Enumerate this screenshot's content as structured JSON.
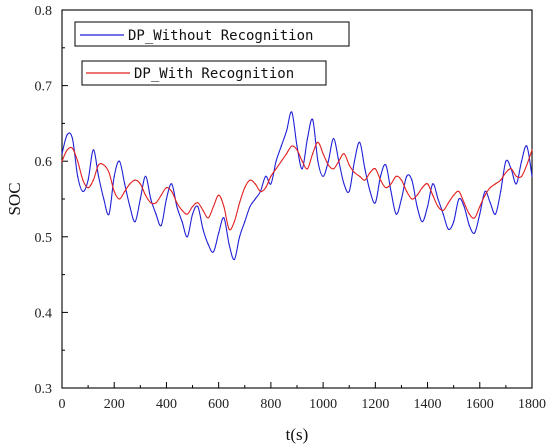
{
  "chart_data": {
    "type": "line",
    "xlabel": "t(s)",
    "ylabel": "SOC",
    "xlim": [
      0,
      1800
    ],
    "ylim": [
      0.3,
      0.8
    ],
    "xticks": [
      0,
      200,
      400,
      600,
      800,
      1000,
      1200,
      1400,
      1600,
      1800
    ],
    "yticks": [
      0.3,
      0.4,
      0.5,
      0.6,
      0.7,
      0.8
    ],
    "xtick_labels": [
      "0",
      "200",
      "400",
      "600",
      "800",
      "1000",
      "1200",
      "1400",
      "1600",
      "1800"
    ],
    "ytick_labels": [
      "0.3",
      "0.4",
      "0.5",
      "0.6",
      "0.7",
      "0.8"
    ],
    "legend_placement": "top-left",
    "series": [
      {
        "name": "DP_Without Recognition",
        "color": "#1f1fd6",
        "x": [
          0,
          20,
          40,
          60,
          80,
          100,
          120,
          140,
          160,
          180,
          200,
          220,
          240,
          260,
          280,
          300,
          320,
          340,
          360,
          380,
          400,
          420,
          440,
          460,
          480,
          500,
          520,
          540,
          560,
          580,
          600,
          620,
          640,
          660,
          680,
          700,
          720,
          740,
          760,
          780,
          800,
          820,
          840,
          860,
          880,
          900,
          920,
          940,
          960,
          980,
          1000,
          1020,
          1040,
          1060,
          1080,
          1100,
          1120,
          1140,
          1160,
          1180,
          1200,
          1220,
          1240,
          1260,
          1280,
          1300,
          1320,
          1340,
          1360,
          1380,
          1400,
          1420,
          1440,
          1460,
          1480,
          1500,
          1520,
          1540,
          1560,
          1580,
          1600,
          1620,
          1640,
          1660,
          1680,
          1700,
          1720,
          1740,
          1760,
          1780,
          1800
        ],
        "y": [
          0.61,
          0.635,
          0.63,
          0.58,
          0.56,
          0.575,
          0.615,
          0.58,
          0.55,
          0.53,
          0.58,
          0.6,
          0.57,
          0.54,
          0.52,
          0.55,
          0.58,
          0.55,
          0.53,
          0.515,
          0.55,
          0.57,
          0.54,
          0.52,
          0.5,
          0.53,
          0.54,
          0.51,
          0.49,
          0.48,
          0.505,
          0.525,
          0.49,
          0.47,
          0.5,
          0.52,
          0.54,
          0.55,
          0.56,
          0.58,
          0.57,
          0.6,
          0.62,
          0.64,
          0.665,
          0.62,
          0.59,
          0.63,
          0.655,
          0.6,
          0.58,
          0.6,
          0.63,
          0.6,
          0.57,
          0.56,
          0.6,
          0.625,
          0.59,
          0.56,
          0.545,
          0.58,
          0.595,
          0.56,
          0.53,
          0.55,
          0.58,
          0.575,
          0.54,
          0.52,
          0.54,
          0.57,
          0.55,
          0.53,
          0.51,
          0.52,
          0.55,
          0.54,
          0.515,
          0.505,
          0.53,
          0.56,
          0.545,
          0.53,
          0.56,
          0.6,
          0.59,
          0.57,
          0.6,
          0.62,
          0.58
        ]
      },
      {
        "name": "DP_With Recognition",
        "color": "#e32020",
        "x": [
          0,
          20,
          40,
          60,
          80,
          100,
          120,
          140,
          160,
          180,
          200,
          220,
          240,
          260,
          280,
          300,
          320,
          340,
          360,
          380,
          400,
          420,
          440,
          460,
          480,
          500,
          520,
          540,
          560,
          580,
          600,
          620,
          640,
          660,
          680,
          700,
          720,
          740,
          760,
          780,
          800,
          820,
          840,
          860,
          880,
          900,
          920,
          940,
          960,
          980,
          1000,
          1020,
          1040,
          1060,
          1080,
          1100,
          1120,
          1140,
          1160,
          1180,
          1200,
          1220,
          1240,
          1260,
          1280,
          1300,
          1320,
          1340,
          1360,
          1380,
          1400,
          1420,
          1440,
          1460,
          1480,
          1500,
          1520,
          1540,
          1560,
          1580,
          1600,
          1620,
          1640,
          1660,
          1680,
          1700,
          1720,
          1740,
          1760,
          1780,
          1800
        ],
        "y": [
          0.6,
          0.615,
          0.617,
          0.6,
          0.575,
          0.565,
          0.575,
          0.595,
          0.595,
          0.585,
          0.56,
          0.55,
          0.56,
          0.57,
          0.575,
          0.57,
          0.555,
          0.545,
          0.545,
          0.555,
          0.565,
          0.56,
          0.545,
          0.535,
          0.53,
          0.54,
          0.545,
          0.535,
          0.525,
          0.54,
          0.555,
          0.54,
          0.51,
          0.52,
          0.545,
          0.565,
          0.575,
          0.57,
          0.56,
          0.565,
          0.58,
          0.59,
          0.6,
          0.61,
          0.62,
          0.615,
          0.6,
          0.59,
          0.61,
          0.625,
          0.61,
          0.595,
          0.59,
          0.6,
          0.61,
          0.595,
          0.585,
          0.58,
          0.575,
          0.585,
          0.59,
          0.575,
          0.565,
          0.57,
          0.58,
          0.575,
          0.56,
          0.55,
          0.555,
          0.565,
          0.57,
          0.555,
          0.54,
          0.535,
          0.545,
          0.555,
          0.56,
          0.545,
          0.53,
          0.525,
          0.54,
          0.555,
          0.565,
          0.57,
          0.575,
          0.585,
          0.59,
          0.58,
          0.58,
          0.595,
          0.615
        ]
      }
    ]
  }
}
